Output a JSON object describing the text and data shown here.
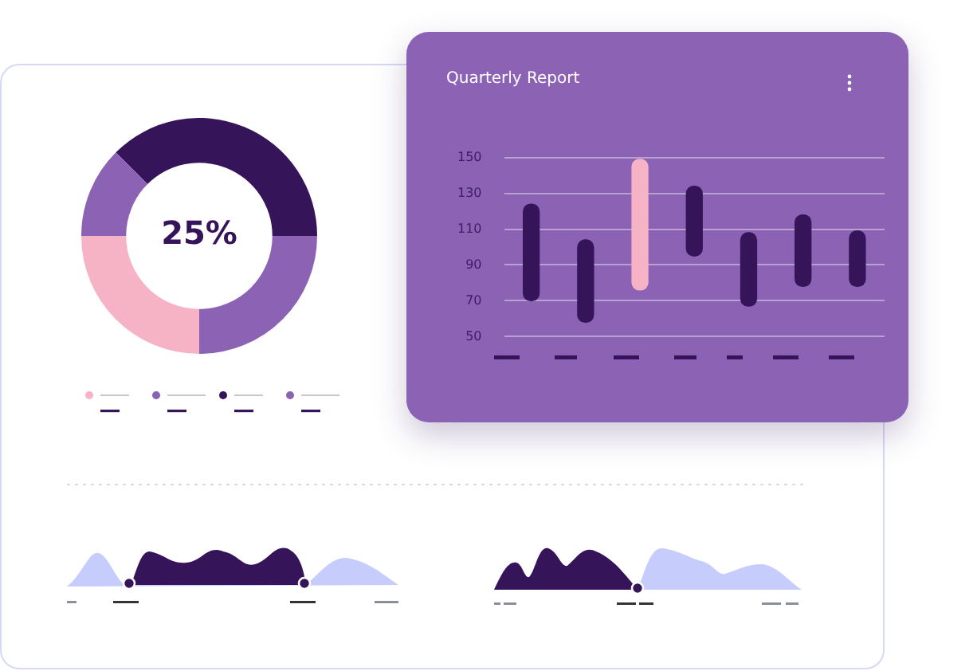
{
  "chart_data": [
    {
      "type": "donut",
      "categories": [
        null,
        null,
        null,
        null
      ],
      "values": [
        37.5,
        25,
        25,
        12.5
      ],
      "colors": [
        "#36145a",
        "#8b62b4",
        "#f6b3c5",
        "#8b62b4"
      ],
      "annotations": [
        "25%"
      ]
    },
    {
      "type": "bar",
      "title": "Quarterly Report",
      "categories": [
        null,
        null,
        null,
        null,
        null,
        null,
        null
      ],
      "base": [
        70,
        58,
        76,
        95,
        67,
        78,
        78
      ],
      "values": [
        54,
        46,
        73,
        39,
        41,
        40,
        31
      ],
      "colors": [
        "#36145a",
        "#36145a",
        "#f6b3c5",
        "#36145a",
        "#36145a",
        "#36145a",
        "#36145a"
      ],
      "ylim": [
        50,
        150
      ],
      "yticks": [
        50,
        70,
        90,
        110,
        130,
        150
      ],
      "grid": "y"
    }
  ]
}
